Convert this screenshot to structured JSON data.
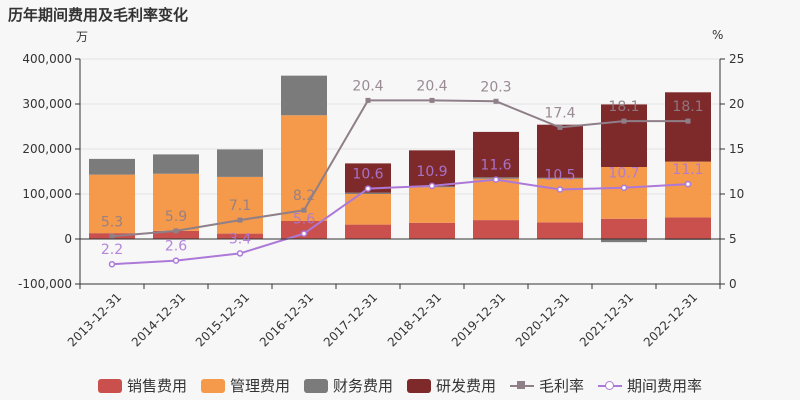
{
  "title": "历年期间费用及毛利率变化",
  "left_unit": "万",
  "right_unit": "%",
  "colors": {
    "sales": "#c9504c",
    "admin": "#f5994a",
    "finance": "#7b7b7b",
    "rd": "#7f2a2a",
    "gross": "#8f7f89",
    "expense": "#ad79d8"
  },
  "chart_data": {
    "type": "bar",
    "stacked": true,
    "categories": [
      "2013-12-31",
      "2014-12-31",
      "2015-12-31",
      "2016-12-31",
      "2017-12-31",
      "2018-12-31",
      "2019-12-31",
      "2020-12-31",
      "2021-12-31",
      "2022-12-31"
    ],
    "series": [
      {
        "name": "销售费用",
        "key": "sales",
        "values": [
          13000,
          18000,
          12000,
          40000,
          32000,
          36000,
          42000,
          37000,
          45000,
          48000
        ]
      },
      {
        "name": "管理费用",
        "key": "admin",
        "values": [
          130000,
          127000,
          126000,
          235000,
          68000,
          79000,
          92000,
          97000,
          115000,
          124000
        ]
      },
      {
        "name": "财务费用",
        "key": "finance",
        "values": [
          35000,
          43000,
          61000,
          88000,
          3000,
          2000,
          3000,
          2000,
          -7000,
          -2000
        ]
      },
      {
        "name": "研发费用",
        "key": "rd",
        "values": [
          0,
          0,
          0,
          0,
          65000,
          80000,
          101000,
          118000,
          139000,
          154000
        ]
      }
    ],
    "lines": [
      {
        "name": "毛利率",
        "key": "gross",
        "marker": "square",
        "values": [
          5.3,
          5.9,
          7.1,
          8.2,
          20.4,
          20.4,
          20.3,
          17.4,
          18.1,
          18.1
        ]
      },
      {
        "name": "期间费用率",
        "key": "expense",
        "marker": "circle",
        "values": [
          2.2,
          2.6,
          3.4,
          5.6,
          10.6,
          10.9,
          11.6,
          10.5,
          10.7,
          11.1
        ]
      }
    ],
    "left_axis": {
      "min": -100000,
      "max": 400000,
      "step": 100000,
      "ticks": [
        "-100,000",
        "0",
        "100,000",
        "200,000",
        "300,000",
        "400,000"
      ]
    },
    "right_axis": {
      "min": 0,
      "max": 25,
      "step": 5,
      "ticks": [
        "0",
        "5",
        "10",
        "15",
        "20",
        "25"
      ]
    },
    "legend": "bottom"
  }
}
